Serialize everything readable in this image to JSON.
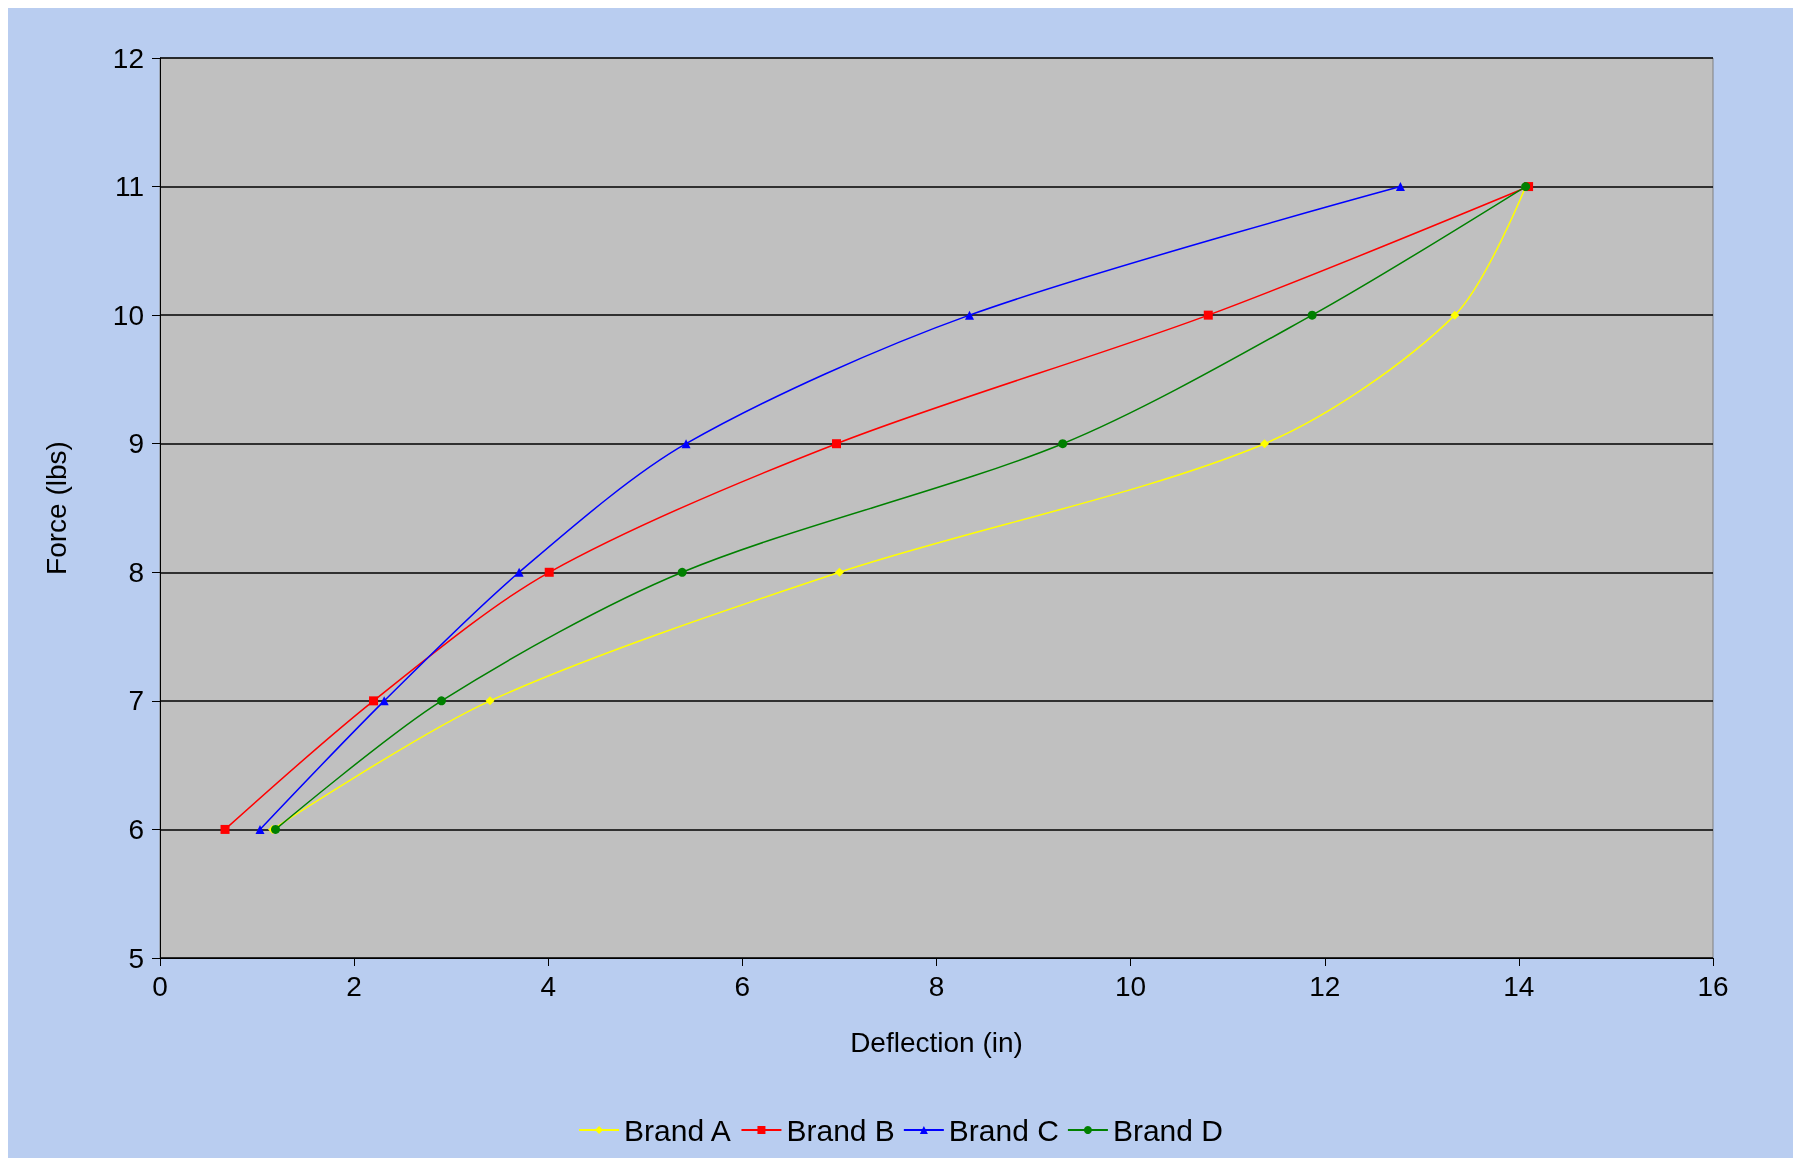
{
  "chart_data": {
    "type": "line",
    "xlabel": "Deflection (in)",
    "ylabel": "Force (lbs)",
    "xlim": [
      0,
      16
    ],
    "xticks": [
      0,
      2,
      4,
      6,
      8,
      10,
      12,
      14,
      16
    ],
    "ylim": [
      5,
      12
    ],
    "yticks": [
      5,
      6,
      7,
      8,
      9,
      10,
      11,
      12
    ],
    "grid": "y",
    "legend": "bottom",
    "series": [
      {
        "name": "Brand A",
        "color": "#ffff00",
        "marker": "diamond",
        "x": [
          1.16,
          3.4,
          7.0,
          11.38,
          13.34,
          14.07
        ],
        "values": [
          6,
          7,
          8,
          9,
          10,
          11
        ]
      },
      {
        "name": "Brand B",
        "color": "#ff0000",
        "marker": "square",
        "x": [
          0.67,
          2.2,
          4.01,
          6.97,
          10.8,
          14.1
        ],
        "values": [
          6,
          7,
          8,
          9,
          10,
          11
        ]
      },
      {
        "name": "Brand C",
        "color": "#0000ff",
        "marker": "triangle",
        "x": [
          1.03,
          2.31,
          3.7,
          5.42,
          8.34,
          12.78
        ],
        "values": [
          6,
          7,
          8,
          9,
          10,
          11
        ]
      },
      {
        "name": "Brand D",
        "color": "#008000",
        "marker": "circle",
        "x": [
          1.19,
          2.9,
          5.38,
          9.3,
          11.87,
          14.07
        ],
        "values": [
          6,
          7,
          8,
          9,
          10,
          11
        ]
      }
    ]
  }
}
